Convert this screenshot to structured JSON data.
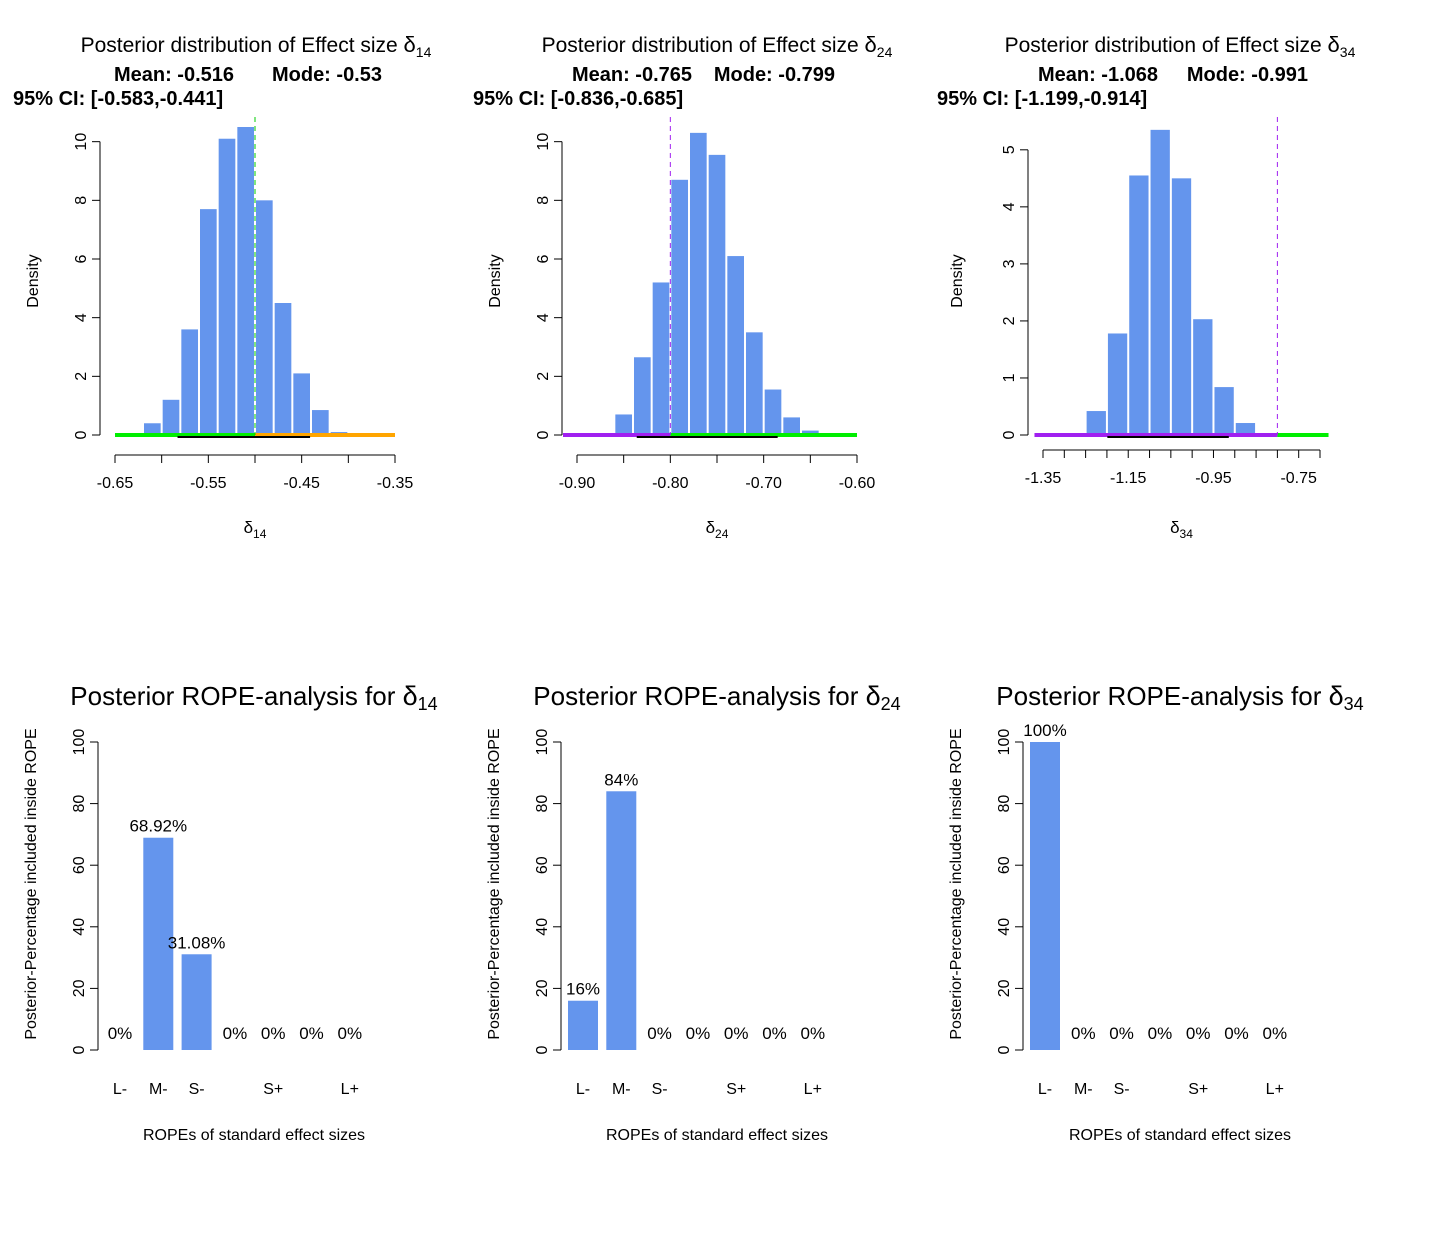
{
  "chart_data": [
    {
      "type": "bar",
      "title_prefix": "Posterior distribution of Effect size ",
      "symbol": "δ",
      "subscript": "14",
      "mean_text": "Mean: -0.516",
      "mode_text": "Mode: -0.53",
      "ci_text": "95% CI: [-0.583,-0.441]",
      "ylabel": "Density",
      "xlabel_symbol": "δ",
      "xlabel_sub": "14",
      "xlim": [
        -0.65,
        -0.35
      ],
      "ylim": [
        0,
        10.5
      ],
      "xticks": [
        -0.65,
        -0.6,
        -0.55,
        -0.5,
        -0.45,
        -0.4,
        -0.35
      ],
      "xtick_labels": [
        "-0.65",
        "",
        "-0.55",
        "",
        "-0.45",
        "",
        "-0.35"
      ],
      "yticks": [
        0,
        2,
        4,
        6,
        8,
        10
      ],
      "ytick_labels": [
        "0",
        "2",
        "4",
        "6",
        "8",
        "10"
      ],
      "bin_width": 0.02,
      "bin_starts": [
        -0.64,
        -0.62,
        -0.6,
        -0.58,
        -0.56,
        -0.54,
        -0.52,
        -0.5,
        -0.48,
        -0.46,
        -0.44,
        -0.42,
        -0.4
      ],
      "values": [
        0.05,
        0.4,
        1.2,
        3.6,
        7.7,
        10.1,
        10.5,
        8.0,
        4.5,
        2.1,
        0.85,
        0.1,
        0.02
      ],
      "rope_segments": [
        {
          "from": -0.65,
          "to": -0.5,
          "color": "#00ee00"
        },
        {
          "from": -0.5,
          "to": -0.35,
          "color": "#ffa500"
        }
      ],
      "ci": [
        -0.583,
        -0.441
      ],
      "vline": -0.5,
      "vline_color": "#00cc00",
      "bar_color": "#6495ed"
    },
    {
      "type": "bar",
      "title_prefix": "Posterior distribution of Effect size ",
      "symbol": "δ",
      "subscript": "24",
      "mean_text": "Mean: -0.765",
      "mode_text": "Mode: -0.799",
      "ci_text": "95% CI: [-0.836,-0.685]",
      "ylabel": "Density",
      "xlabel_symbol": "δ",
      "xlabel_sub": "24",
      "xlim": [
        -0.9,
        -0.6
      ],
      "ylim": [
        0,
        10.5
      ],
      "xticks": [
        -0.9,
        -0.85,
        -0.8,
        -0.75,
        -0.7,
        -0.65,
        -0.6
      ],
      "xtick_labels": [
        "-0.90",
        "",
        "-0.80",
        "",
        "-0.70",
        "",
        "-0.60"
      ],
      "yticks": [
        0,
        2,
        4,
        6,
        8,
        10
      ],
      "ytick_labels": [
        "0",
        "2",
        "4",
        "6",
        "8",
        "10"
      ],
      "bin_width": 0.02,
      "bin_starts": [
        -0.88,
        -0.86,
        -0.84,
        -0.82,
        -0.8,
        -0.78,
        -0.76,
        -0.74,
        -0.72,
        -0.7,
        -0.68,
        -0.66,
        -0.64
      ],
      "values": [
        0.02,
        0.7,
        2.65,
        5.2,
        8.7,
        10.3,
        9.55,
        6.1,
        3.5,
        1.55,
        0.6,
        0.15,
        0.02
      ],
      "rope_segments": [
        {
          "from": -0.915,
          "to": -0.8,
          "color": "#a020f0"
        },
        {
          "from": -0.8,
          "to": -0.6,
          "color": "#00ee00"
        }
      ],
      "ci": [
        -0.836,
        -0.685
      ],
      "vline": -0.8,
      "vline_color": "#a020f0",
      "bar_color": "#6495ed"
    },
    {
      "type": "bar",
      "title_prefix": "Posterior distribution of Effect size ",
      "symbol": "δ",
      "subscript": "34",
      "mean_text": "Mean: -1.068",
      "mode_text": "Mode: -0.991",
      "ci_text": "95% CI: [-1.199,-0.914]",
      "ylabel": "Density",
      "xlabel_symbol": "δ",
      "xlabel_sub": "34",
      "xlim": [
        -1.35,
        -0.7
      ],
      "ylim": [
        0,
        5.4
      ],
      "xticks": [
        -1.35,
        -1.3,
        -1.25,
        -1.2,
        -1.15,
        -1.1,
        -1.05,
        -1.0,
        -0.95,
        -0.9,
        -0.85,
        -0.8,
        -0.75,
        -0.7
      ],
      "xtick_labels": [
        "-1.35",
        "",
        "",
        "",
        "-1.15",
        "",
        "",
        "",
        "-0.95",
        "",
        "",
        "",
        "-0.75",
        ""
      ],
      "yticks": [
        0,
        1,
        2,
        3,
        4,
        5
      ],
      "ytick_labels": [
        "0",
        "1",
        "2",
        "3",
        "4",
        "5"
      ],
      "bin_width": 0.05,
      "bin_starts": [
        -1.3,
        -1.25,
        -1.2,
        -1.15,
        -1.1,
        -1.05,
        -1.0,
        -0.95,
        -0.9
      ],
      "values": [
        0.02,
        0.42,
        1.78,
        4.55,
        5.35,
        4.5,
        2.03,
        0.84,
        0.21
      ],
      "rope_segments": [
        {
          "from": -1.37,
          "to": -0.8,
          "color": "#a020f0"
        },
        {
          "from": -0.8,
          "to": -0.68,
          "color": "#00ee00"
        }
      ],
      "ci": [
        -1.199,
        -0.914
      ],
      "vline": -0.8,
      "vline_color": "#a020f0",
      "bar_color": "#6495ed"
    },
    {
      "type": "bar",
      "title_prefix": "Posterior ROPE-analysis for ",
      "symbol": "δ",
      "subscript": "14",
      "ylabel": "Posterior-Percentage included inside ROPE",
      "xlabel": "ROPEs of standard effect sizes",
      "ylim": [
        0,
        100
      ],
      "yticks": [
        0,
        20,
        40,
        60,
        80,
        100
      ],
      "ytick_labels": [
        "0",
        "20",
        "40",
        "60",
        "80",
        "100"
      ],
      "categories": [
        "L-",
        "M-",
        "S-",
        "",
        "S+",
        "",
        "L+"
      ],
      "values": [
        0,
        68.92,
        31.08,
        0,
        0,
        0,
        0
      ],
      "value_labels": [
        "0%",
        "68.92%",
        "31.08%",
        "0%",
        "0%",
        "0%",
        "0%"
      ],
      "bar_color": "#6495ed"
    },
    {
      "type": "bar",
      "title_prefix": "Posterior ROPE-analysis for ",
      "symbol": "δ",
      "subscript": "24",
      "ylabel": "Posterior-Percentage included inside ROPE",
      "xlabel": "ROPEs of standard effect sizes",
      "ylim": [
        0,
        100
      ],
      "yticks": [
        0,
        20,
        40,
        60,
        80,
        100
      ],
      "ytick_labels": [
        "0",
        "20",
        "40",
        "60",
        "80",
        "100"
      ],
      "categories": [
        "L-",
        "M-",
        "S-",
        "",
        "S+",
        "",
        "L+"
      ],
      "values": [
        16,
        84,
        0,
        0,
        0,
        0,
        0
      ],
      "value_labels": [
        "16%",
        "84%",
        "0%",
        "0%",
        "0%",
        "0%",
        "0%"
      ],
      "bar_color": "#6495ed"
    },
    {
      "type": "bar",
      "title_prefix": "Posterior ROPE-analysis for ",
      "symbol": "δ",
      "subscript": "34",
      "ylabel": "Posterior-Percentage included inside ROPE",
      "xlabel": "ROPEs of standard effect sizes",
      "ylim": [
        0,
        100
      ],
      "yticks": [
        0,
        20,
        40,
        60,
        80,
        100
      ],
      "ytick_labels": [
        "0",
        "20",
        "40",
        "60",
        "80",
        "100"
      ],
      "categories": [
        "L-",
        "M-",
        "S-",
        "",
        "S+",
        "",
        "L+"
      ],
      "values": [
        100,
        0,
        0,
        0,
        0,
        0,
        0
      ],
      "value_labels": [
        "100%",
        "0%",
        "0%",
        "0%",
        "0%",
        "0%",
        "0%"
      ],
      "bar_color": "#6495ed"
    }
  ]
}
